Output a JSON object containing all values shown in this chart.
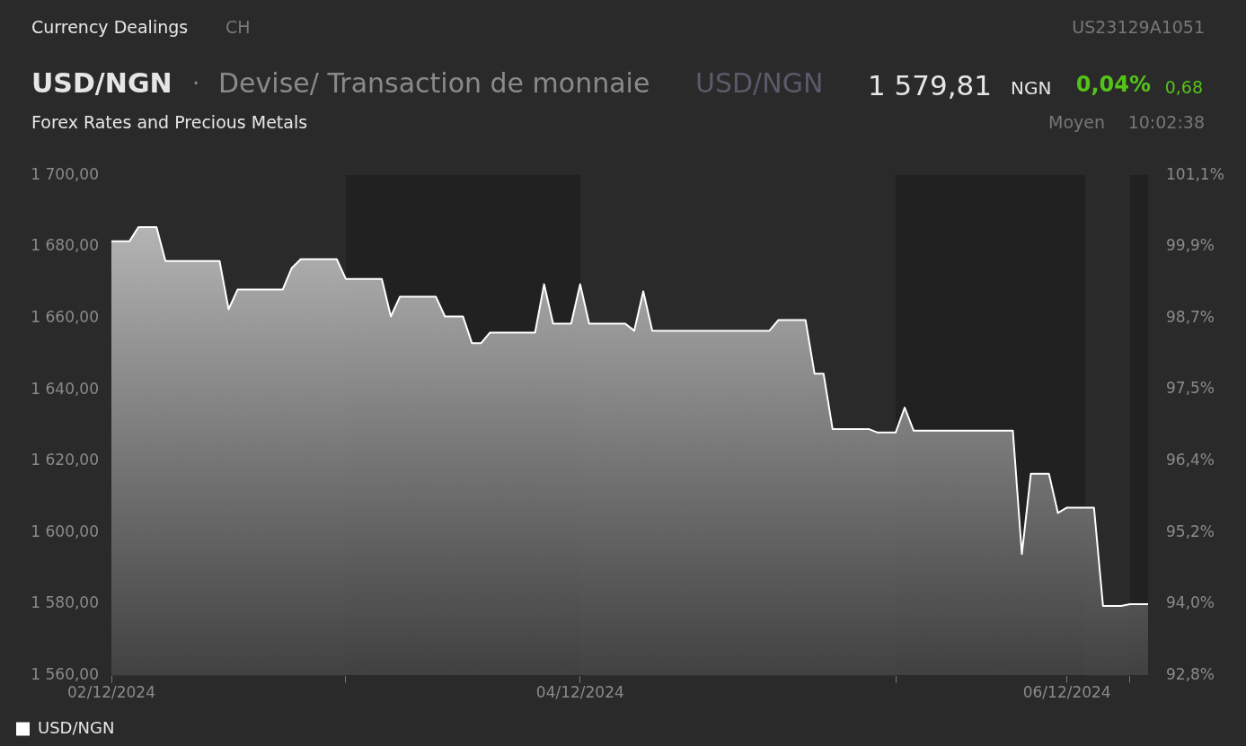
{
  "chart_data": {
    "type": "area",
    "title": "USD/NGN",
    "subtitle": "Devise/ Transaction de monnaie",
    "annotations": [
      "Currency Dealings",
      "CH",
      "US23129A1051",
      "USD/NGN",
      "1 579,81",
      "NGN",
      "0,04%",
      "0,68",
      "Forex Rates and Precious Metals",
      "Moyen",
      "10:02:38",
      "·"
    ],
    "categories": [
      "02/12/2024",
      null,
      null,
      null,
      null,
      null,
      null,
      null,
      null,
      null,
      null,
      null,
      null,
      null,
      null,
      null,
      null,
      null,
      null,
      null,
      null,
      null,
      null,
      null,
      null,
      null,
      null,
      null,
      null,
      null,
      null,
      null,
      null,
      null,
      null,
      null,
      null,
      null,
      null,
      null,
      null,
      null,
      null,
      null,
      null,
      null,
      null,
      null,
      null,
      null,
      null,
      null,
      "04/12/2024",
      null,
      null,
      null,
      null,
      null,
      null,
      null,
      null,
      null,
      null,
      null,
      null,
      null,
      null,
      null,
      null,
      null,
      null,
      null,
      null,
      null,
      null,
      null,
      null,
      null,
      null,
      null,
      null,
      null,
      null,
      null,
      null,
      null,
      null,
      null,
      null,
      null,
      null,
      null,
      null,
      null,
      null,
      null,
      null,
      null,
      null,
      null,
      null,
      null,
      null,
      null,
      null,
      null,
      "06/12/2024",
      null,
      null,
      null,
      null,
      null,
      null,
      null,
      null,
      null
    ],
    "series": [
      {
        "name": "USD/NGN",
        "color": "#ffffff",
        "values": [
          1681.5,
          1681.5,
          1681.5,
          1685.5,
          1685.5,
          1685.5,
          1676,
          1676,
          1676,
          1676,
          1676,
          1676,
          1676,
          1662.5,
          1668,
          1668,
          1668,
          1668,
          1668,
          1668,
          1674,
          1676.5,
          1676.5,
          1676.5,
          1676.5,
          1676.5,
          1671,
          1671,
          1671,
          1671,
          1671,
          1660.5,
          1666,
          1666,
          1666,
          1666,
          1666,
          1660.5,
          1660.5,
          1660.5,
          1653,
          1653,
          1656,
          1656,
          1656,
          1656,
          1656,
          1656,
          1669.5,
          1658.5,
          1658.5,
          1658.5,
          1669.5,
          1658.5,
          1658.5,
          1658.5,
          1658.5,
          1658.5,
          1656.5,
          1667.5,
          1656.5,
          1656.5,
          1656.5,
          1656.5,
          1656.5,
          1656.5,
          1656.5,
          1656.5,
          1656.5,
          1656.5,
          1656.5,
          1656.5,
          1656.5,
          1656.5,
          1659.5,
          1659.5,
          1659.5,
          1659.5,
          1644.5,
          1644.5,
          1629,
          1629,
          1629,
          1629,
          1629,
          1628,
          1628,
          1628,
          1635,
          1628.5,
          1628.5,
          1628.5,
          1628.5,
          1628.5,
          1628.5,
          1628.5,
          1628.5,
          1628.5,
          1628.5,
          1628.5,
          1628.5,
          1594,
          1616.5,
          1616.5,
          1616.5,
          1605.5,
          1607,
          1607,
          1607,
          1607,
          1579.5,
          1579.5,
          1579.5,
          1580,
          1580,
          1580
        ]
      }
    ],
    "ylim": [
      1560,
      1700
    ],
    "yticks": [
      {
        "value": 1560,
        "label": "1 560,00"
      },
      {
        "value": 1580,
        "label": "1 580,00"
      },
      {
        "value": 1600,
        "label": "1 600,00"
      },
      {
        "value": 1620,
        "label": "1 620,00"
      },
      {
        "value": 1640,
        "label": "1 640,00"
      },
      {
        "value": 1660,
        "label": "1 660,00"
      },
      {
        "value": 1680,
        "label": "1 680,00"
      },
      {
        "value": 1700,
        "label": "1 700,00"
      }
    ],
    "y2lim": [
      92.8,
      101.1
    ],
    "y2ticks": [
      {
        "value": 92.8,
        "label": "92,8%"
      },
      {
        "value": 93.986,
        "label": "94,0%"
      },
      {
        "value": 95.171,
        "label": "95,2%"
      },
      {
        "value": 96.357,
        "label": "96,4%"
      },
      {
        "value": 97.543,
        "label": "97,5%"
      },
      {
        "value": 98.729,
        "label": "98,7%"
      },
      {
        "value": 99.914,
        "label": "99,9%"
      },
      {
        "value": 101.1,
        "label": "101,1%"
      }
    ],
    "grid": false,
    "legend": "bottom left",
    "marker": "none",
    "line_style": "solid"
  }
}
